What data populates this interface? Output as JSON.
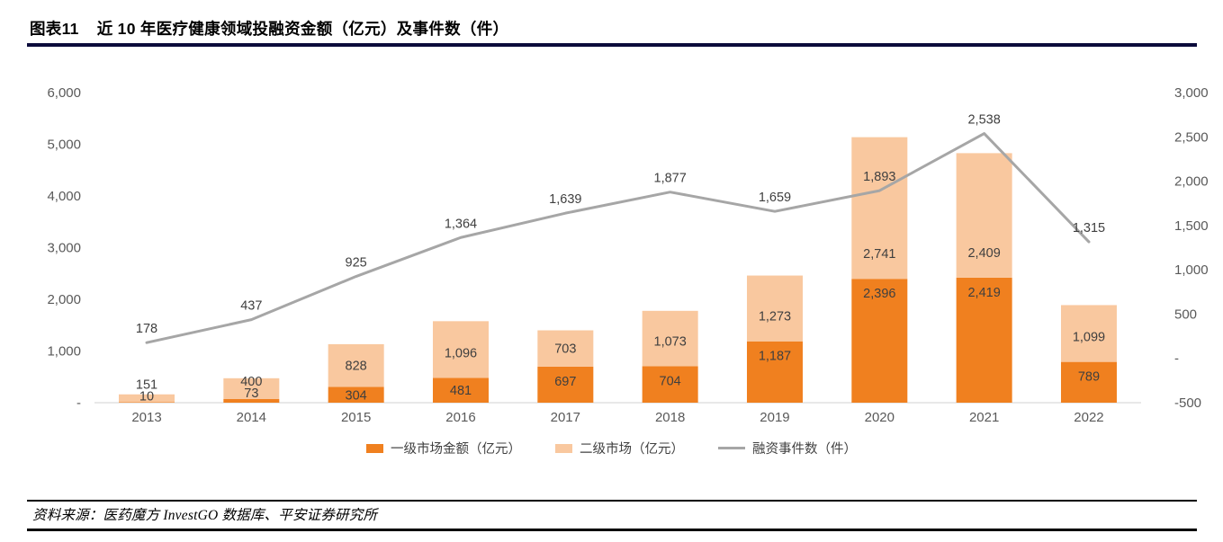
{
  "header": {
    "figure_label": "图表11",
    "title": "近 10 年医疗健康领域投融资金额（亿元）及事件数（件）"
  },
  "chart_data": {
    "type": "combo",
    "title": "近 10 年医疗健康领域投融资金额（亿元）及事件数（件）",
    "categories": [
      "2013",
      "2014",
      "2015",
      "2016",
      "2017",
      "2018",
      "2019",
      "2020",
      "2021",
      "2022"
    ],
    "series": [
      {
        "name": "一级市场金额（亿元）",
        "type": "bar",
        "stacked": true,
        "axis": "left",
        "color": "#F0801F",
        "values": [
          10,
          73,
          304,
          481,
          697,
          704,
          1187,
          2396,
          2419,
          789
        ]
      },
      {
        "name": "二级市场（亿元）",
        "type": "bar",
        "stacked": true,
        "axis": "left",
        "color": "#F9C89F",
        "values": [
          151,
          400,
          828,
          1096,
          703,
          1073,
          1273,
          2741,
          2409,
          1099
        ]
      },
      {
        "name": "融资事件数（件）",
        "type": "line",
        "axis": "right",
        "color": "#A6A6A6",
        "values": [
          178,
          437,
          925,
          1364,
          1639,
          1877,
          1659,
          1893,
          2538,
          1315
        ]
      }
    ],
    "left_axis": {
      "min": 0,
      "max": 6000,
      "step": 1000,
      "tick_labels": [
        "6,000",
        "5,000",
        "4,000",
        "3,000",
        "2,000",
        "1,000",
        "-"
      ]
    },
    "right_axis": {
      "min": -500,
      "max": 3000,
      "step": 500,
      "tick_labels": [
        "3,000",
        "2,500",
        "2,000",
        "1,500",
        "1,000",
        "500",
        "-",
        "-500"
      ]
    },
    "legend_position": "bottom",
    "gridlines": false
  },
  "legend": [
    {
      "label": "一级市场金额（亿元）",
      "swatch": "rect",
      "color": "#F0801F"
    },
    {
      "label": "二级市场（亿元）",
      "swatch": "rect",
      "color": "#F9C89F"
    },
    {
      "label": "融资事件数（件）",
      "swatch": "line",
      "color": "#A6A6A6"
    }
  ],
  "footer": {
    "source": "资料来源：医药魔方 InvestGO 数据库、平安证券研究所"
  },
  "colors": {
    "primary_bar": "#F0801F",
    "secondary_bar": "#F9C89F",
    "events_line": "#A6A6A6",
    "axis_text": "#595959",
    "data_label_text": "#3f3f3f",
    "title_rule": "#0b0b3b",
    "footer_rule": "#000000",
    "baseline": "#D9D9D9"
  }
}
